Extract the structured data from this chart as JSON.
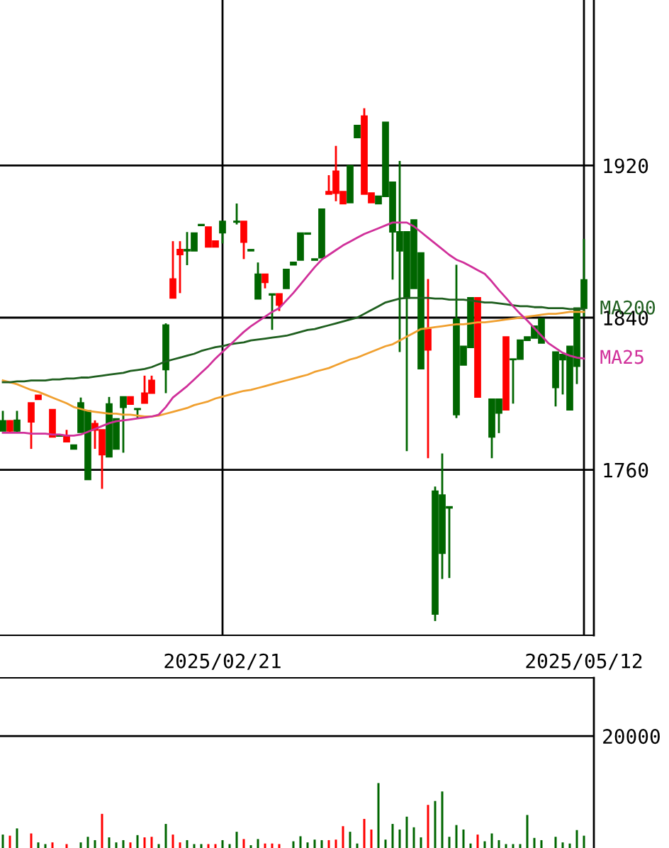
{
  "chart_data": [
    {
      "type": "candlestick",
      "categories": [
        null,
        null,
        null,
        null,
        null,
        null,
        null,
        null,
        null,
        null,
        null,
        null,
        null,
        null,
        null,
        null,
        null,
        null,
        null,
        null,
        null,
        null,
        null,
        null,
        null,
        null,
        null,
        null,
        null,
        null,
        null,
        "2025/02/21",
        null,
        null,
        null,
        null,
        null,
        null,
        null,
        null,
        null,
        null,
        null,
        null,
        null,
        null,
        null,
        null,
        null,
        null,
        null,
        null,
        null,
        null,
        null,
        null,
        null,
        null,
        null,
        null,
        null,
        null,
        null,
        null,
        null,
        null,
        null,
        null,
        null,
        null,
        null,
        null,
        null,
        null,
        null,
        null,
        null,
        null,
        null,
        null,
        null,
        null,
        "2025/05/12"
      ],
      "ohlc": [
        [
          1785.7,
          1791,
          1780.5,
          1780.5
        ],
        [
          1780.5,
          1786,
          1780,
          1785.7
        ],
        [
          1786,
          1791,
          1780,
          1780.5
        ],
        null,
        [
          1785.2,
          1795.1,
          1771,
          1795.1
        ],
        [
          1797.1,
          1799.1,
          1797.1,
          1799.1
        ],
        null,
        [
          1777.3,
          1791.6,
          1777.3,
          1791.6
        ],
        [
          1778.2,
          1778.2,
          1777.8,
          1777.8
        ],
        [
          1774.8,
          1781,
          1774.8,
          1778
        ],
        [
          1773,
          1773,
          1771,
          1771
        ],
        [
          1795.1,
          1798,
          1779.7,
          1779.7
        ],
        [
          1790.9,
          1790.9,
          1755,
          1755
        ],
        [
          1781,
          1786,
          1771,
          1784.2
        ],
        [
          1768,
          1781,
          1750,
          1781
        ],
        [
          1794.6,
          1798.3,
          1766.9,
          1766.9
        ],
        [
          1786.7,
          1786.7,
          1771,
          1771
        ],
        [
          1798.3,
          1798.3,
          1769,
          1792.9
        ],
        [
          1794.6,
          1798.3,
          1794.6,
          1798.3
        ],
        [
          1792.1,
          1792.1,
          1787.2,
          1791.8
        ],
        [
          1795.1,
          1809.5,
          1795.1,
          1800.3
        ],
        [
          1800.3,
          1809.5,
          1800.3,
          1807
        ],
        null,
        [
          1836,
          1837,
          1800.3,
          1812.7
        ],
        [
          1850.4,
          1880.2,
          1850.4,
          1860.3
        ],
        [
          1873.2,
          1880.2,
          1852.9,
          1875.7
        ],
        [
          1875.7,
          1885,
          1867.6,
          1875.2
        ],
        [
          1884.4,
          1884.4,
          1875.2,
          1875.2
        ],
        [
          1888.9,
          1888.9,
          1888.5,
          1888.5
        ],
        [
          1877.2,
          1887.6,
          1877.2,
          1887.6
        ],
        [
          1877.2,
          1880.2,
          1877.2,
          1880.2
        ],
        [
          1890.6,
          1890.6,
          1879,
          1884.7
        ],
        null,
        [
          1890.6,
          1900,
          1889,
          1890.3
        ],
        [
          1879.7,
          1890.6,
          1870.8,
          1890.6
        ],
        [
          1875.7,
          1875.7,
          1875.2,
          1875.2
        ],
        [
          1862.8,
          1869,
          1849.9,
          1849.9
        ],
        [
          1858.6,
          1862.8,
          1855.4,
          1862.8
        ],
        [
          1852.4,
          1852.4,
          1833.6,
          1852
        ],
        [
          1846.7,
          1852.4,
          1843.5,
          1852.4
        ],
        [
          1865.3,
          1865.3,
          1855.4,
          1855.4
        ],
        [
          1869,
          1869,
          1867.8,
          1867.8
        ],
        [
          1884.4,
          1884.4,
          1870.3,
          1870.3
        ],
        [
          1884.4,
          1884.4,
          1884,
          1884
        ],
        [
          1870.8,
          1870.8,
          1870.3,
          1870.3
        ],
        [
          1897,
          1897,
          1871.5,
          1871.5
        ],
        [
          1905,
          1914.9,
          1905,
          1906.2
        ],
        [
          1905.5,
          1930.3,
          1901.2,
          1916.9
        ],
        [
          1900,
          1906.2,
          1900,
          1906.2
        ],
        [
          1919.8,
          1919.8,
          1900.5,
          1900.5
        ],
        [
          1941,
          1941,
          1934.7,
          1934.7
        ],
        [
          1905,
          1950.1,
          1905,
          1945.9
        ],
        [
          1900.5,
          1905.5,
          1900.5,
          1905.5
        ],
        [
          1903.8,
          1903.8,
          1900,
          1900
        ],
        [
          1942.7,
          1942.7,
          1903.8,
          1903.8
        ],
        [
          1911.2,
          1911.2,
          1860,
          1885.1
        ],
        [
          1885.1,
          1922.4,
          1821.9,
          1875.2
        ],
        [
          1885.1,
          1885.1,
          1769.8,
          1850.4
        ],
        [
          1891.3,
          1891.3,
          1855.4,
          1855.4
        ],
        [
          1874,
          1874,
          1813.2,
          1813.2
        ],
        [
          1823.1,
          1860.3,
          1766.1,
          1833.8
        ],
        [
          1748.7,
          1751.2,
          1680.5,
          1684.2
        ],
        [
          1746.7,
          1768.6,
          1702.6,
          1716.2
        ],
        [
          1740.5,
          1740.5,
          1703.1,
          1740
        ],
        [
          1839.3,
          1867.8,
          1787.2,
          1789.1
        ],
        [
          1824.9,
          1824.9,
          1815.2,
          1815.2
        ],
        [
          1850.4,
          1850.4,
          1824.4,
          1824.4
        ],
        [
          1798.3,
          1850.4,
          1798.3,
          1850.4
        ],
        null,
        [
          1797.1,
          1797.1,
          1766.1,
          1777.3
        ],
        [
          1797.1,
          1797.1,
          1779.3,
          1789.9
        ],
        [
          1791.6,
          1829.8,
          1791.6,
          1829.8
        ],
        [
          1818.2,
          1818.2,
          1794.8,
          1818
        ],
        [
          1828.1,
          1828.1,
          1818.2,
          1818.2
        ],
        [
          1829.8,
          1829.8,
          1828.1,
          1828.1
        ],
        [
          1835.5,
          1835.5,
          1829.3,
          1829.3
        ],
        [
          1839.3,
          1839.3,
          1826.7,
          1826.7
        ],
        null,
        [
          1821.9,
          1821.9,
          1793.3,
          1803.3
        ],
        [
          1820.6,
          1820.6,
          1799.6,
          1818
        ],
        [
          1824.9,
          1824.9,
          1791.6,
          1791.6
        ],
        [
          1845,
          1845,
          1805.1,
          1814.5
        ],
        [
          1859.8,
          1881.4,
          1840.5,
          1845
        ]
      ],
      "colors": [
        "#006600",
        "#ff0000",
        "#006600",
        null,
        "#ff0000",
        "#ff0000",
        null,
        "#ff0000",
        "#006600",
        "#ff0000",
        "#006600",
        "#006600",
        "#006600",
        "#ff0000",
        "#ff0000",
        "#006600",
        "#006600",
        "#006600",
        "#ff0000",
        "#006600",
        "#ff0000",
        "#ff0000",
        null,
        "#006600",
        "#ff0000",
        "#ff0000",
        "#006600",
        "#006600",
        "#006600",
        "#ff0000",
        "#ff0000",
        "#006600",
        null,
        "#006600",
        "#ff0000",
        "#006600",
        "#006600",
        "#ff0000",
        "#006600",
        "#ff0000",
        "#006600",
        "#006600",
        "#006600",
        "#006600",
        "#006600",
        "#006600",
        "#ff0000",
        "#ff0000",
        "#ff0000",
        "#006600",
        "#006600",
        "#ff0000",
        "#ff0000",
        "#006600",
        "#006600",
        "#006600",
        "#006600",
        "#006600",
        "#006600",
        "#006600",
        "#ff0000",
        "#006600",
        "#006600",
        "#006600",
        "#006600",
        "#006600",
        "#006600",
        "#ff0000",
        null,
        "#006600",
        "#006600",
        "#ff0000",
        "#006600",
        "#006600",
        "#006600",
        "#006600",
        "#006600",
        null,
        "#006600",
        "#006600",
        "#006600",
        "#006600",
        "#006600"
      ],
      "series": [
        {
          "type": "line",
          "color": "#f0a030",
          "values": [
            1807,
            1806,
            1805,
            1803.5,
            1802,
            1801,
            1799.5,
            1798,
            1796.5,
            1795,
            1793,
            1792,
            1791,
            1790.5,
            1790,
            1789.5,
            1789.5,
            1789,
            1789,
            1788.5,
            1788,
            1788,
            1788.5,
            1789.5,
            1790.5,
            1791.5,
            1792.5,
            1794,
            1795,
            1796,
            1797.5,
            1798.5,
            1799.5,
            1800.5,
            1801.5,
            1802,
            1803,
            1804,
            1805,
            1806,
            1807,
            1808,
            1809,
            1810,
            1811.5,
            1812.5,
            1813.5,
            1815,
            1816.5,
            1818,
            1819,
            1820.5,
            1822,
            1823.5,
            1825,
            1826,
            1828,
            1830,
            1832,
            1834,
            1834.5,
            1835,
            1835.5,
            1836,
            1836.5,
            1836.5,
            1837,
            1837.5,
            1837.5,
            1838,
            1838.5,
            1839,
            1839.5,
            1840,
            1840.5,
            1841,
            1841.5,
            1842,
            1842,
            1842.5,
            1843,
            1843,
            1843
          ]
        },
        {
          "type": "line",
          "name": "MA200",
          "color": "#1f5f1f",
          "values": [
            1806,
            1806,
            1806.5,
            1806.5,
            1807,
            1807,
            1807,
            1807.5,
            1807.5,
            1808,
            1808,
            1808.5,
            1808.5,
            1809,
            1809.5,
            1810,
            1810.5,
            1811,
            1812,
            1812.5,
            1813,
            1814,
            1815.5,
            1817,
            1818,
            1819,
            1820,
            1821,
            1822.5,
            1823.5,
            1824.5,
            1825,
            1826,
            1826.5,
            1827,
            1828,
            1828.5,
            1829,
            1829.5,
            1830,
            1830.5,
            1831.5,
            1832.5,
            1833.5,
            1834,
            1835,
            1836,
            1837,
            1838,
            1839,
            1840,
            1842,
            1844,
            1846,
            1848,
            1849,
            1850,
            1850.4,
            1850.4,
            1850.4,
            1850.4,
            1850,
            1850,
            1849.5,
            1849.5,
            1849.5,
            1849,
            1848.5,
            1848,
            1848,
            1847.5,
            1847,
            1846.5,
            1846,
            1846,
            1845.5,
            1845.5,
            1845,
            1845,
            1845,
            1844.5,
            1844.5,
            1844.5
          ]
        },
        {
          "type": "line",
          "name": "MA25",
          "color": "#d0309a",
          "values": [
            1779.5,
            1779.5,
            1779.5,
            1779.5,
            1779,
            1779,
            1779,
            1778.5,
            1778.5,
            1778,
            1778,
            1778.5,
            1780,
            1781.5,
            1783,
            1784.5,
            1785.5,
            1786,
            1786.5,
            1787,
            1787.5,
            1788,
            1789,
            1793,
            1798,
            1801,
            1804,
            1807.5,
            1811,
            1814.5,
            1818.5,
            1822,
            1825.5,
            1829,
            1832.5,
            1835.5,
            1838,
            1840.5,
            1843,
            1845,
            1849,
            1853,
            1857.5,
            1862,
            1866.5,
            1870.5,
            1873,
            1875.5,
            1878,
            1880,
            1882,
            1884,
            1885.5,
            1887,
            1888.5,
            1890,
            1890,
            1890,
            1888,
            1885,
            1882,
            1879,
            1876,
            1873,
            1870.5,
            1869,
            1867,
            1865,
            1863,
            1859,
            1854.5,
            1850.4,
            1846,
            1842,
            1838.5,
            1834.5,
            1830.5,
            1826.5,
            1824,
            1821.5,
            1820,
            1819,
            1818.5
          ]
        }
      ],
      "ylim": [
        1673,
        2007
      ],
      "yticks": [
        1760,
        1840,
        1920
      ],
      "grid": true
    },
    {
      "type": "bar",
      "categories": [
        null,
        null,
        null,
        null,
        null,
        null,
        null,
        null,
        null,
        null,
        null,
        null,
        null,
        null,
        null,
        null,
        null,
        null,
        null,
        null,
        null,
        null,
        null,
        null,
        null,
        null,
        null,
        null,
        null,
        null,
        null,
        null,
        null,
        null,
        null,
        null,
        null,
        null,
        null,
        null,
        null,
        null,
        null,
        null,
        null,
        null,
        null,
        null,
        null,
        null,
        null,
        null,
        null,
        null,
        null,
        null,
        null,
        null,
        null,
        null,
        null,
        null,
        null,
        null,
        null,
        null,
        null,
        null,
        null,
        null,
        null,
        null,
        null,
        null,
        null,
        null,
        null,
        null,
        null,
        null,
        null,
        null,
        null
      ],
      "values": [
        2400,
        2200,
        3500,
        null,
        2600,
        1000,
        700,
        1000,
        null,
        700,
        null,
        1000,
        2000,
        1400,
        6100,
        1900,
        1000,
        1400,
        1000,
        2300,
        1900,
        2000,
        700,
        4300,
        2400,
        1000,
        1400,
        700,
        700,
        700,
        700,
        1400,
        700,
        2900,
        1600,
        500,
        1600,
        800,
        800,
        700,
        null,
        1200,
        2100,
        1000,
        1500,
        1400,
        1400,
        1500,
        3900,
        2900,
        800,
        5200,
        3300,
        11600,
        1500,
        4300,
        3300,
        5600,
        3700,
        1900,
        7700,
        8400,
        10100,
        2000,
        4100,
        3300,
        800,
        2400,
        1200,
        2600,
        1400,
        700,
        700,
        700,
        5900,
        1800,
        1400,
        null,
        2000,
        1000,
        800,
        3200,
        2200
      ],
      "colors": [
        "#006600",
        "#ff0000",
        "#006600",
        null,
        "#ff0000",
        "#006600",
        "#006600",
        "#ff0000",
        null,
        "#ff0000",
        null,
        "#006600",
        "#006600",
        "#006600",
        "#ff0000",
        "#006600",
        "#006600",
        "#006600",
        "#ff0000",
        "#006600",
        "#ff0000",
        "#ff0000",
        "#006600",
        "#006600",
        "#ff0000",
        "#ff0000",
        "#006600",
        "#006600",
        "#006600",
        "#ff0000",
        "#ff0000",
        "#006600",
        "#006600",
        "#006600",
        "#ff0000",
        "#006600",
        "#006600",
        "#ff0000",
        "#ff0000",
        "#ff0000",
        null,
        "#006600",
        "#006600",
        "#006600",
        "#006600",
        "#006600",
        "#ff0000",
        "#ff0000",
        "#ff0000",
        "#006600",
        "#006600",
        "#ff0000",
        "#ff0000",
        "#006600",
        "#006600",
        "#006600",
        "#006600",
        "#006600",
        "#006600",
        "#006600",
        "#ff0000",
        "#006600",
        "#006600",
        "#006600",
        "#006600",
        "#006600",
        "#006600",
        "#ff0000",
        "#006600",
        "#006600",
        "#006600",
        "#006600",
        "#006600",
        "#006600",
        "#006600",
        "#006600",
        "#006600",
        null,
        "#006600",
        "#006600",
        "#006600",
        "#006600",
        "#006600"
      ],
      "ylim": [
        0,
        30400
      ],
      "yticks": [
        20000
      ],
      "grid": "y"
    }
  ]
}
